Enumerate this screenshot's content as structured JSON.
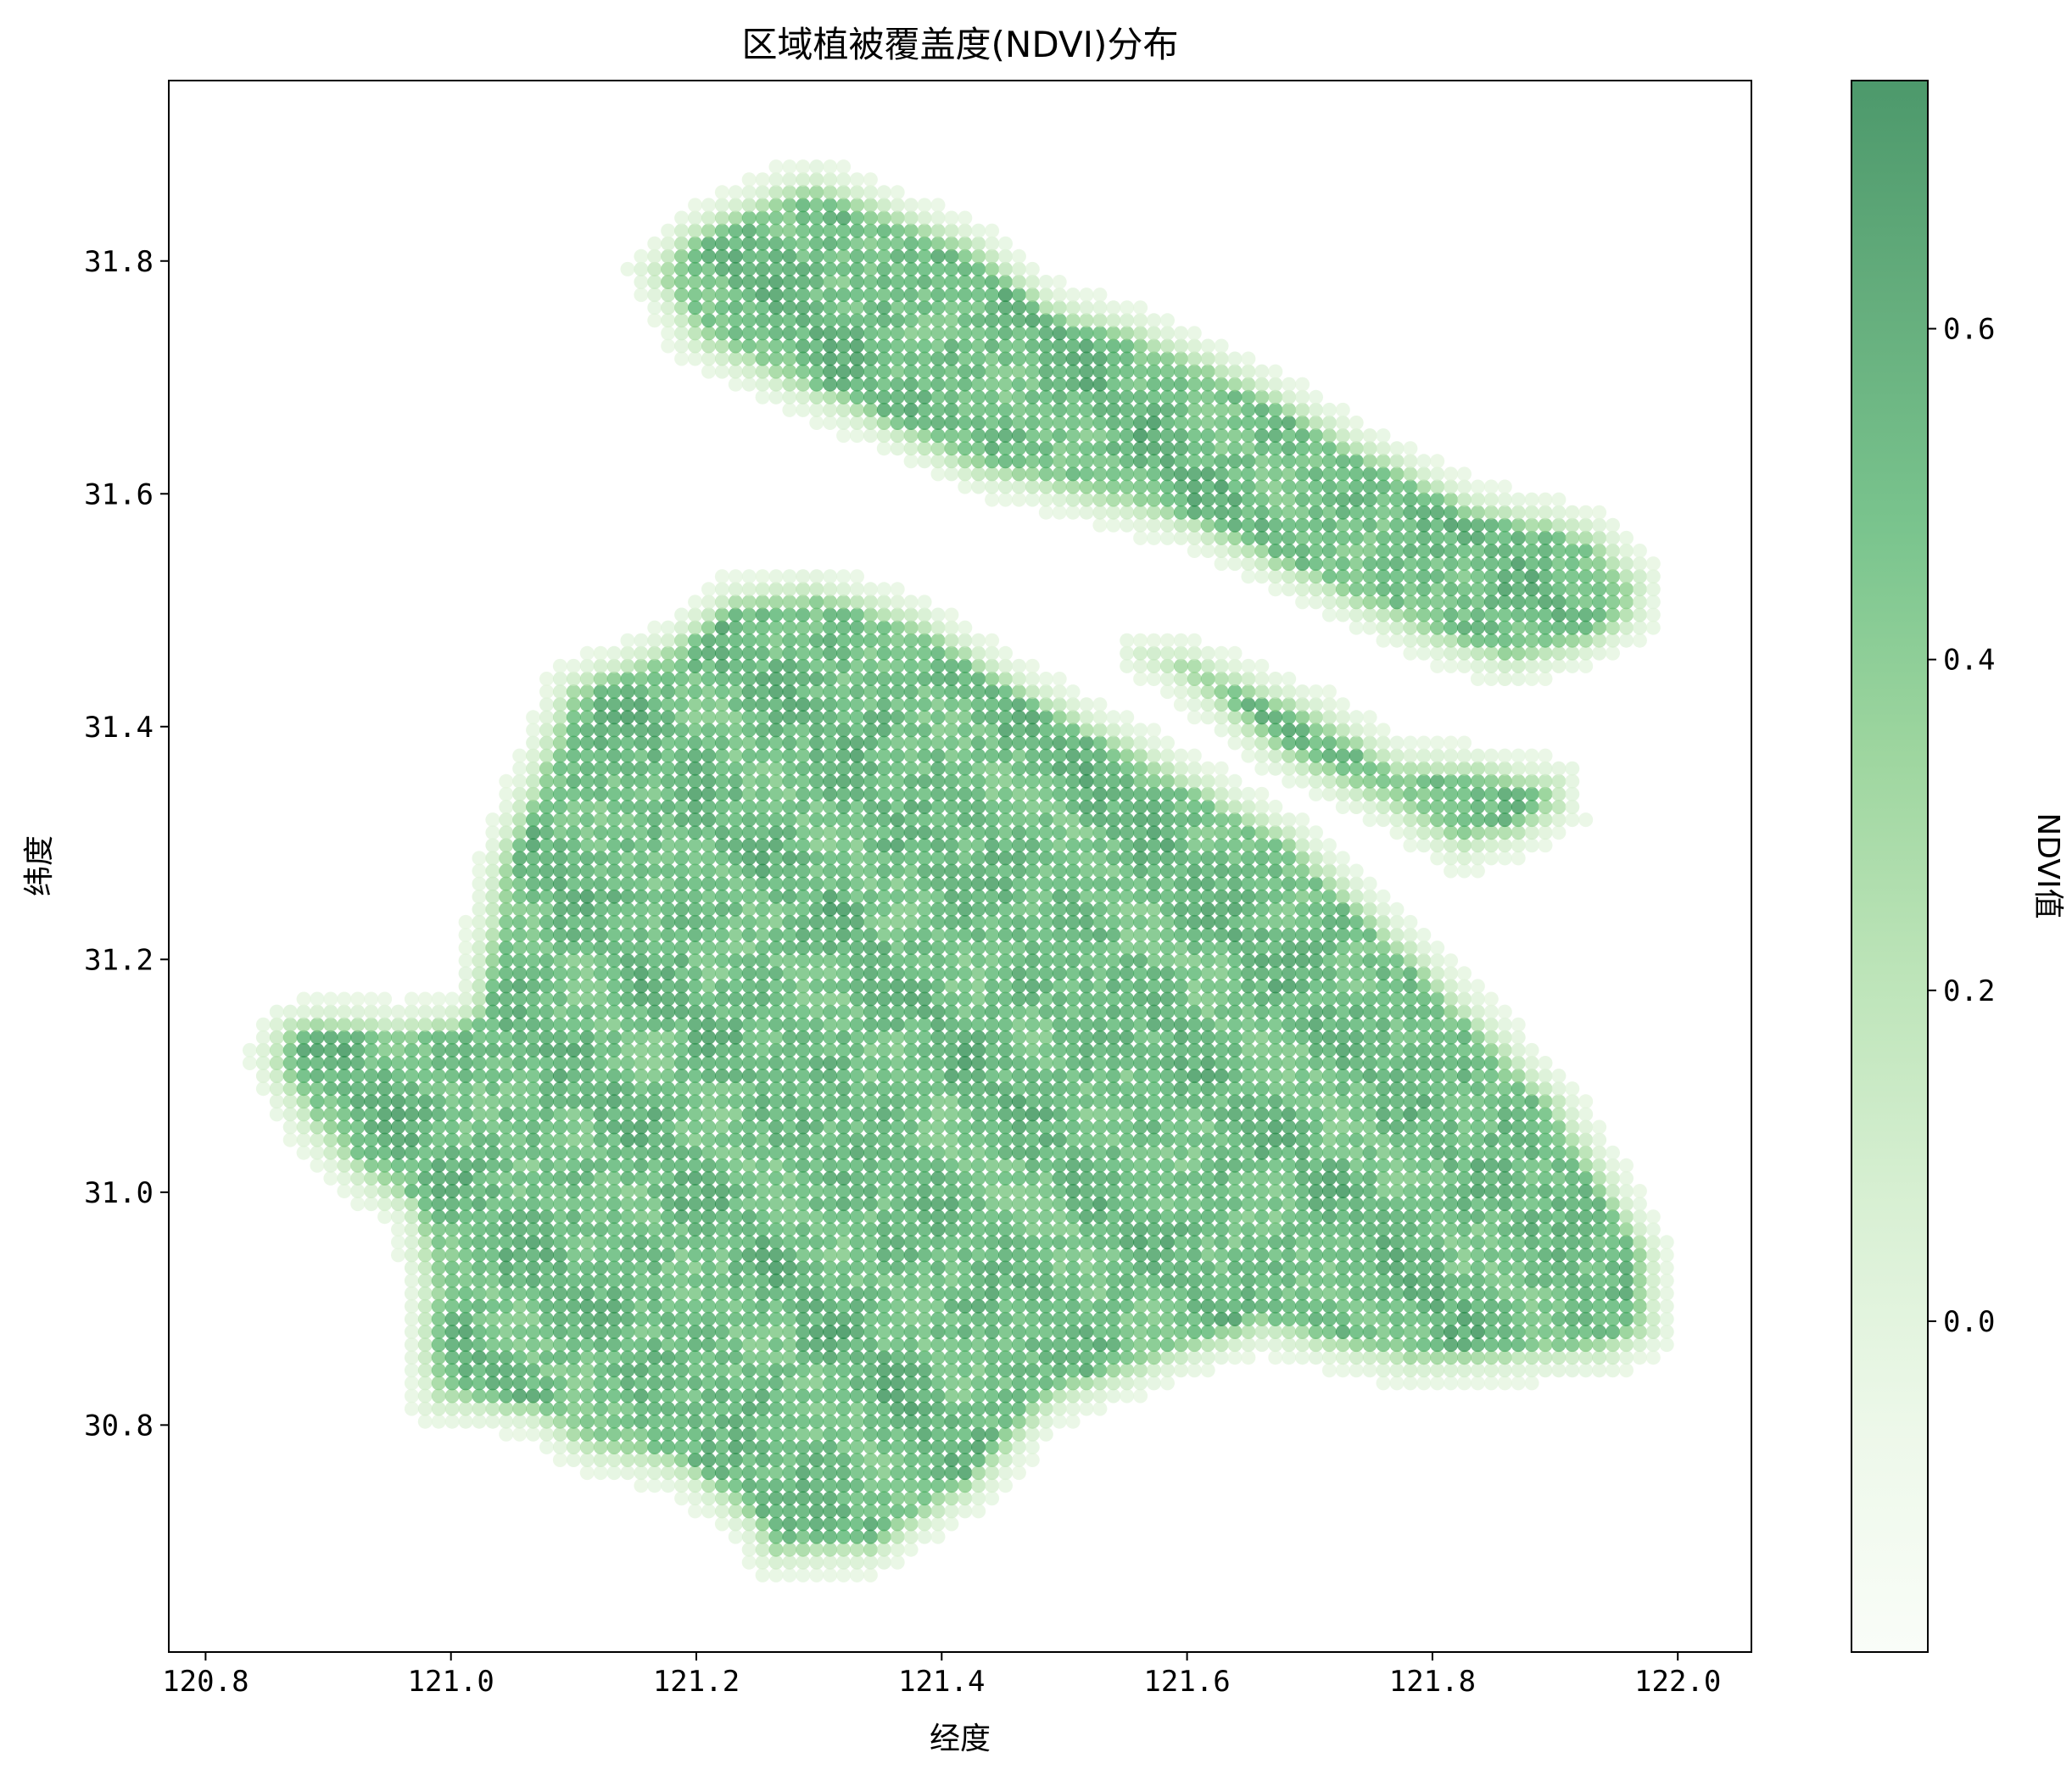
{
  "chart_data": {
    "type": "scatter",
    "title": "区域植被覆盖度(NDVI)分布",
    "xlabel": "经度",
    "ylabel": "纬度",
    "xlim": [
      120.77,
      122.06
    ],
    "ylim": [
      30.605,
      31.955
    ],
    "x_ticks": [
      "120.8",
      "121.0",
      "121.2",
      "121.4",
      "121.6",
      "121.8",
      "122.0"
    ],
    "x_tick_values": [
      120.8,
      121.0,
      121.2,
      121.4,
      121.6,
      121.8,
      122.0
    ],
    "y_ticks": [
      "30.8",
      "31.0",
      "31.2",
      "31.4",
      "31.6",
      "31.8"
    ],
    "y_tick_values": [
      30.8,
      31.0,
      31.2,
      31.4,
      31.6,
      31.8
    ],
    "grid": false,
    "point_alpha": 0.7,
    "colormap": "Greens",
    "colormap_stops": [
      "#f7fcf5",
      "#e5f5e0",
      "#c7e9c0",
      "#a1d99b",
      "#74c476",
      "#41ab5d",
      "#238b45",
      "#006d2c"
    ],
    "colorbar": {
      "label": "NDVI值",
      "vmin": -0.2,
      "vmax": 0.75,
      "ticks": [
        "0.0",
        "0.2",
        "0.4",
        "0.6"
      ],
      "tick_values": [
        0.0,
        0.2,
        0.4,
        0.6
      ]
    },
    "regions": [
      {
        "name": "",
        "polygon": [
          [
            121.25,
            30.665
          ],
          [
            121.35,
            30.67
          ],
          [
            121.44,
            30.73
          ],
          [
            121.5,
            30.8
          ],
          [
            121.55,
            30.82
          ],
          [
            121.66,
            30.86
          ],
          [
            121.78,
            30.83
          ],
          [
            121.95,
            30.84
          ],
          [
            122.0,
            30.87
          ],
          [
            121.995,
            30.96
          ],
          [
            121.92,
            31.09
          ],
          [
            121.8,
            31.22
          ],
          [
            121.7,
            31.32
          ],
          [
            121.57,
            31.4
          ],
          [
            121.48,
            31.45
          ],
          [
            121.39,
            31.51
          ],
          [
            121.3,
            31.54
          ],
          [
            121.22,
            31.53
          ],
          [
            121.17,
            31.49
          ],
          [
            121.08,
            31.45
          ],
          [
            121.05,
            31.37
          ],
          [
            121.02,
            31.29
          ],
          [
            121.0,
            31.17
          ],
          [
            120.96,
            31.165
          ],
          [
            120.89,
            31.17
          ],
          [
            120.85,
            31.16
          ],
          [
            120.83,
            31.12
          ],
          [
            120.84,
            31.09
          ],
          [
            120.87,
            31.04
          ],
          [
            120.92,
            30.99
          ],
          [
            120.95,
            30.97
          ],
          [
            120.96,
            30.92
          ],
          [
            120.96,
            30.85
          ],
          [
            120.97,
            30.8
          ],
          [
            121.06,
            30.79
          ],
          [
            121.1,
            30.76
          ],
          [
            121.18,
            30.74
          ],
          [
            121.23,
            30.7
          ]
        ]
      },
      {
        "name": "",
        "polygon": [
          [
            121.14,
            31.795
          ],
          [
            121.18,
            31.84
          ],
          [
            121.26,
            31.88
          ],
          [
            121.3,
            31.89
          ],
          [
            121.37,
            31.86
          ],
          [
            121.44,
            31.83
          ],
          [
            121.5,
            31.78
          ],
          [
            121.57,
            31.76
          ],
          [
            121.67,
            31.71
          ],
          [
            121.75,
            31.66
          ],
          [
            121.84,
            31.61
          ],
          [
            121.9,
            31.6
          ],
          [
            121.95,
            31.58
          ],
          [
            121.99,
            31.53
          ],
          [
            121.985,
            31.48
          ],
          [
            121.93,
            31.45
          ],
          [
            121.86,
            31.43
          ],
          [
            121.78,
            31.46
          ],
          [
            121.68,
            31.51
          ],
          [
            121.6,
            31.55
          ],
          [
            121.5,
            31.58
          ],
          [
            121.42,
            31.6
          ],
          [
            121.34,
            31.64
          ],
          [
            121.25,
            31.68
          ],
          [
            121.18,
            31.72
          ]
        ]
      },
      {
        "name": "",
        "polygon": [
          [
            121.54,
            31.48
          ],
          [
            121.6,
            31.48
          ],
          [
            121.72,
            31.43
          ],
          [
            121.78,
            31.39
          ],
          [
            121.84,
            31.385
          ],
          [
            121.92,
            31.37
          ],
          [
            121.925,
            31.32
          ],
          [
            121.88,
            31.29
          ],
          [
            121.82,
            31.27
          ],
          [
            121.76,
            31.31
          ],
          [
            121.66,
            31.36
          ],
          [
            121.58,
            31.43
          ],
          [
            121.54,
            31.45
          ]
        ]
      }
    ],
    "ndvi_pattern": {
      "interior_mean": 0.5,
      "interior_range": [
        0.38,
        0.68
      ],
      "edge_min": -0.05
    }
  }
}
